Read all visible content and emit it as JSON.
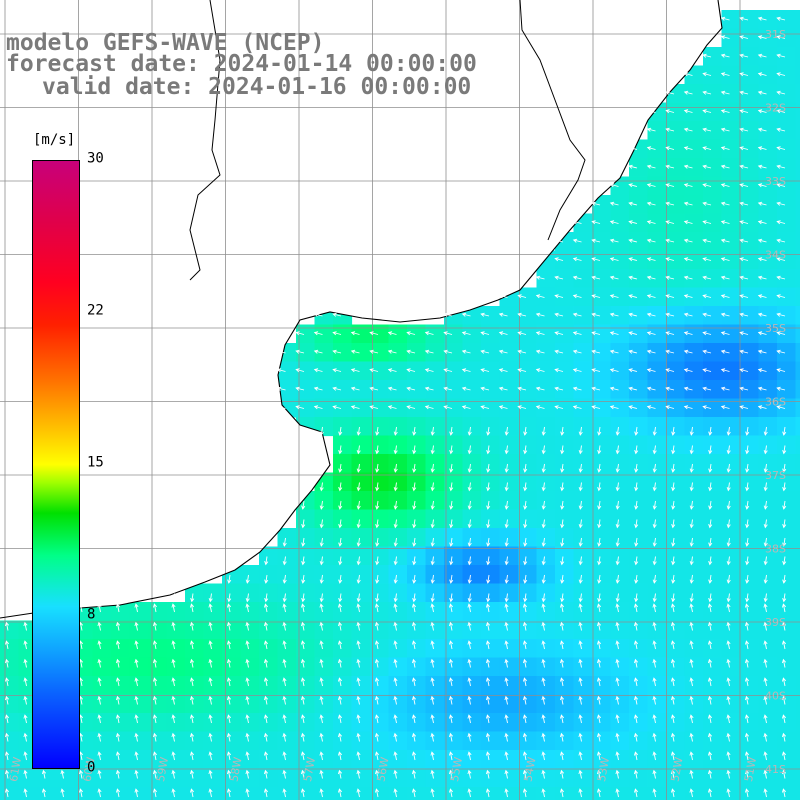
{
  "title": {
    "line1": "modelo GEFS-WAVE (NCEP)",
    "line2": "forecast date: 2024-01-14 00:00:00",
    "line3": "valid date: 2024-01-16 00:00:00"
  },
  "legend": {
    "unit": "[m/s]",
    "ticks": [
      "30",
      "22",
      "15",
      "8",
      "0"
    ],
    "tick_values": [
      30,
      22,
      15,
      8,
      0
    ],
    "min": 0,
    "max": 30,
    "colors": [
      "#0000ff",
      "#10a8ff",
      "#18e0ff",
      "#00ff88",
      "#00e000",
      "#ffff00",
      "#ff7000",
      "#ff0020",
      "#c8007a"
    ]
  },
  "map": {
    "land_color": "#ffffff",
    "coastline_color": "#000000",
    "grid_color": "#9a9a9a",
    "arrow_color": "#ffffff",
    "lat_labels": [
      "31S",
      "32S",
      "33S",
      "34S",
      "35S",
      "36S",
      "37S",
      "38S",
      "39S",
      "40S",
      "41S"
    ],
    "lon_labels": [
      "61W",
      "60W",
      "59W",
      "58W",
      "57W",
      "56W",
      "55W",
      "54W",
      "53W",
      "52W",
      "51W"
    ]
  }
}
